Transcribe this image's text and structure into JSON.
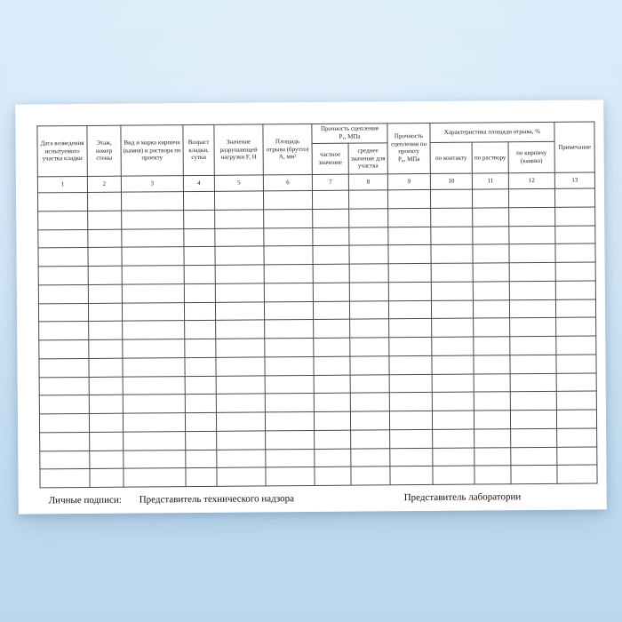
{
  "colors": {
    "background_top": "#d9ecfa",
    "background_bottom": "#b9d7ee",
    "paper": "#ffffff",
    "table_border": "#4a4a4a",
    "text": "#1c1c1c"
  },
  "document": {
    "signatures": {
      "label": "Личные подписи:",
      "tech_supervisor": "Представитель технического надзора",
      "laboratory": "Представитель лаборатории"
    },
    "table": {
      "empty_row_count": 16,
      "column_numbers": [
        "1",
        "2",
        "3",
        "4",
        "5",
        "6",
        "7",
        "8",
        "9",
        "10",
        "11",
        "12",
        "13"
      ],
      "headers": {
        "col1": "Дата возведения испытуемого участка кладки",
        "col2": "Этаж, номер стены",
        "col3": "Вид и марка кирпича (камня) и раствора по проекту",
        "col4": "Возраст кладки, сутки",
        "col5": "Значение разрушающей нагрузки F, Н",
        "col6": "Площадь отрыва (брутто) А, мм²",
        "bond_group": {
          "title": "Прочность сцепления",
          "symbol": "Р",
          "symbol_sub": "т",
          "unit": ", МПа"
        },
        "col7": "частное значение",
        "col8": "среднее значение для участка",
        "col9": {
          "title": "Прочность сцепления по проекту",
          "symbol": "Р",
          "symbol_sub": "п",
          "unit": ", МПа"
        },
        "area_group": "Характеристика площади отрыва, %",
        "col10": "по контакту",
        "col11": "по раствору",
        "col12": "по кирпичу (камню)",
        "col13": "Примечание"
      }
    }
  }
}
